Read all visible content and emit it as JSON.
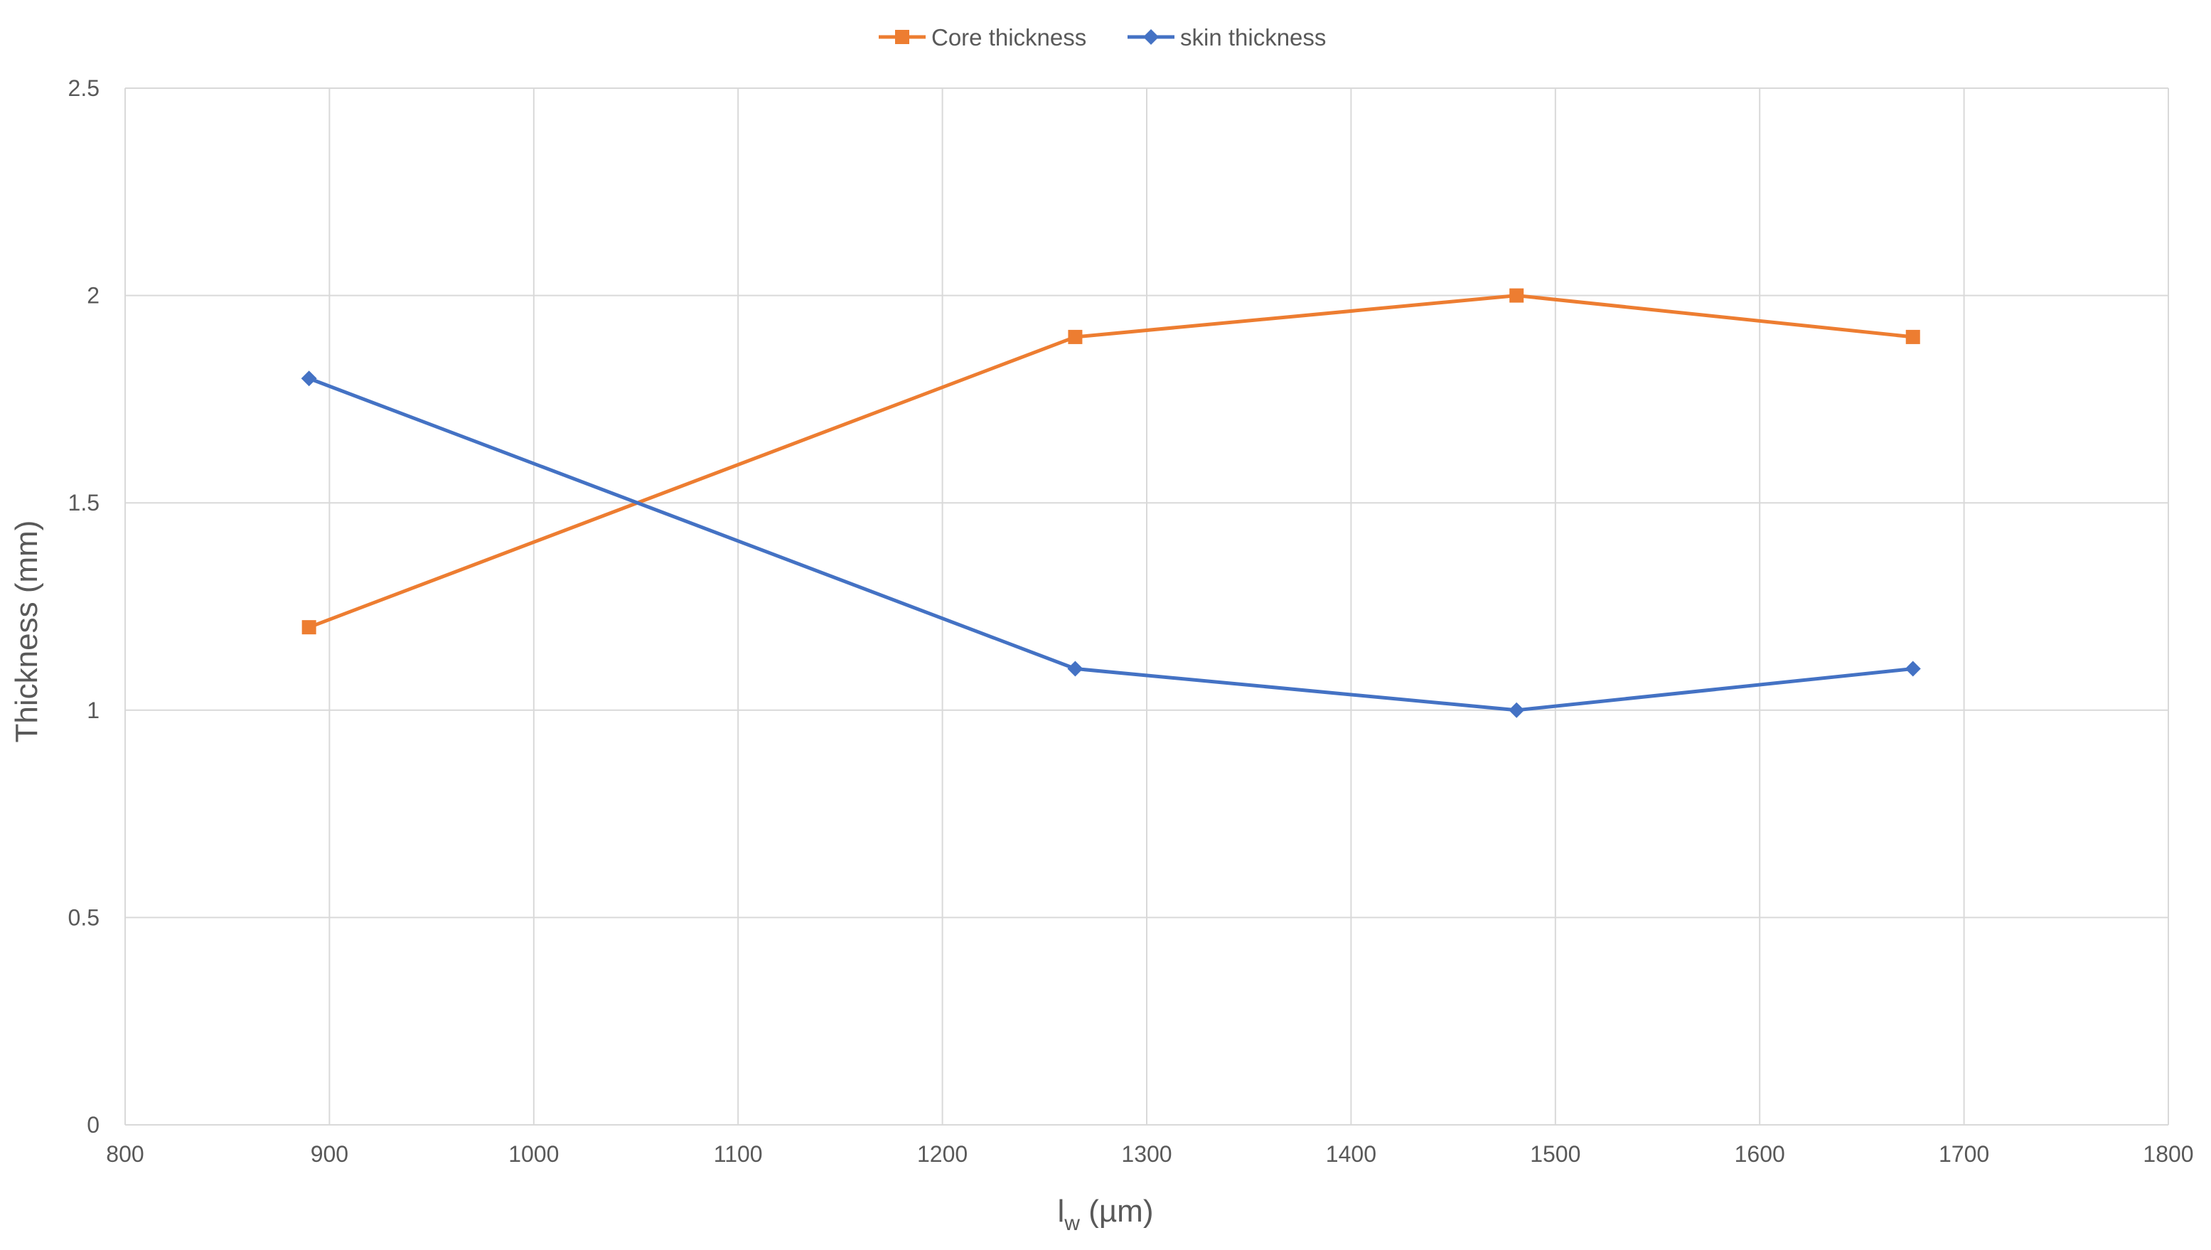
{
  "chart_data": {
    "type": "line",
    "title": "",
    "xlabel": {
      "main": "l",
      "sub": "w",
      "unit": " (µm)"
    },
    "ylabel": "Thickness (mm)",
    "xlim": [
      800,
      1800
    ],
    "ylim": [
      0,
      2.5
    ],
    "xticks": [
      "800",
      "900",
      "1000",
      "1100",
      "1200",
      "1300",
      "1400",
      "1500",
      "1600",
      "1700",
      "1800"
    ],
    "yticks": [
      "0",
      "0.5",
      "1",
      "1.5",
      "2",
      "2.5"
    ],
    "grid": true,
    "legend_position": "top-center",
    "series": [
      {
        "name": "Core thickness",
        "color": "#ED7D31",
        "marker": "square",
        "x": [
          890,
          1265,
          1481,
          1675
        ],
        "y": [
          1.2,
          1.9,
          2.0,
          1.9
        ]
      },
      {
        "name": "skin thickness",
        "color": "#4472C4",
        "marker": "diamond",
        "x": [
          890,
          1265,
          1481,
          1675
        ],
        "y": [
          1.8,
          1.1,
          1.0,
          1.1
        ]
      }
    ]
  }
}
